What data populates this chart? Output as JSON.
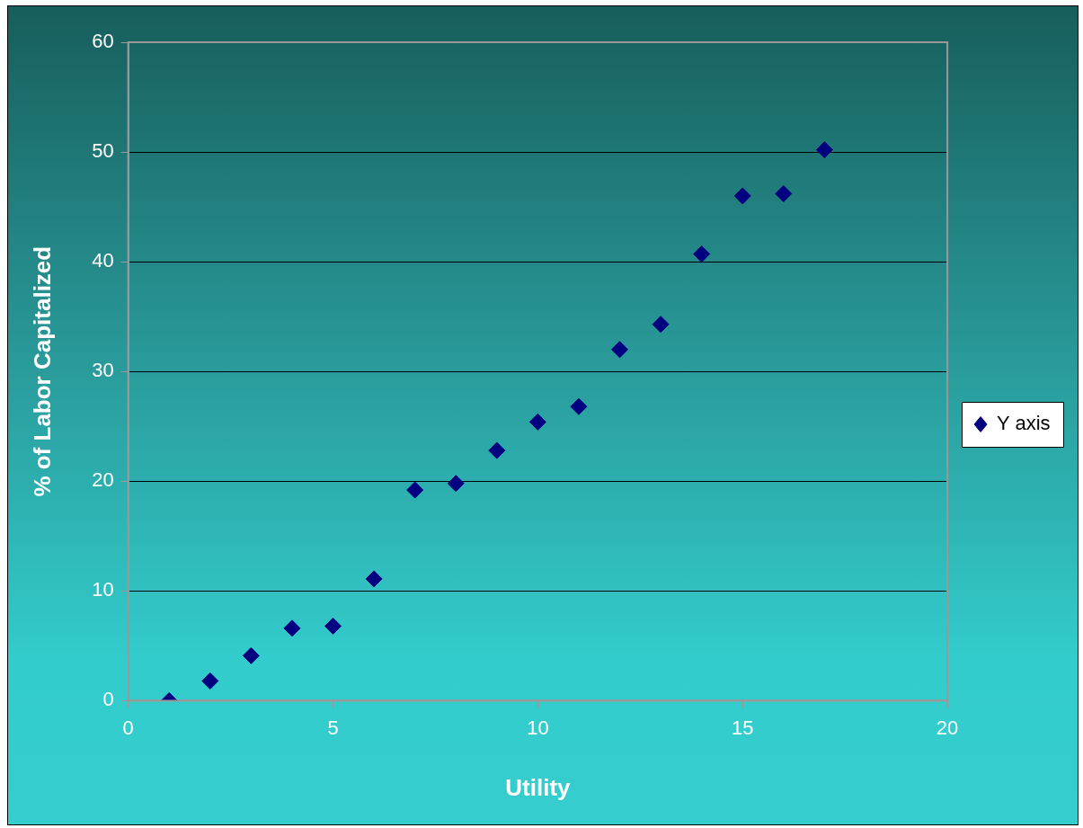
{
  "chart_data": {
    "type": "scatter",
    "xlabel": "Utility",
    "ylabel": "% of Labor Capitalized",
    "x": [
      1,
      2,
      3,
      4,
      5,
      6,
      7,
      8,
      9,
      10,
      11,
      12,
      13,
      14,
      15,
      16,
      17
    ],
    "series": [
      {
        "name": "Y axis",
        "color": "#000080",
        "values": [
          0,
          1.8,
          4.1,
          6.6,
          6.8,
          11.1,
          19.2,
          19.8,
          22.8,
          25.4,
          26.8,
          32,
          34.3,
          40.7,
          46,
          46.2,
          50.2
        ]
      }
    ],
    "xlim": [
      0,
      20
    ],
    "xticks": [
      0,
      5,
      10,
      15,
      20
    ],
    "ylim": [
      0,
      60
    ],
    "yticks": [
      0,
      10,
      20,
      30,
      40,
      50,
      60
    ],
    "grid": "y",
    "legend": "right",
    "marker": "diamond"
  }
}
